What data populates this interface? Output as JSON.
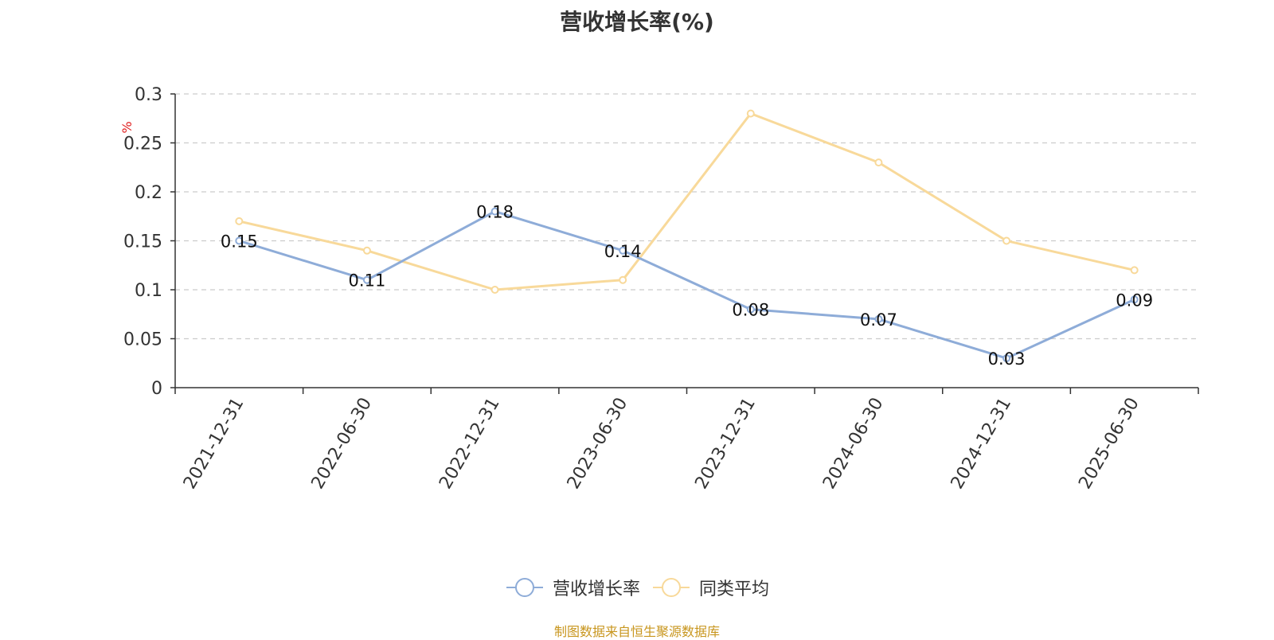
{
  "chart_data": {
    "type": "line",
    "title": "营收增长率(%)",
    "ylabel": "%",
    "xlabel": "",
    "categories": [
      "2021-12-31",
      "2022-06-30",
      "2022-12-31",
      "2023-06-30",
      "2023-12-31",
      "2024-06-30",
      "2024-12-31",
      "2025-06-30"
    ],
    "ylim": [
      0,
      0.3
    ],
    "yticks": [
      "0",
      "0.05",
      "0.1",
      "0.15",
      "0.2",
      "0.25",
      "0.3"
    ],
    "grid": true,
    "legend_position": "bottom-center",
    "series": [
      {
        "name": "营收增长率",
        "color": "#8eacd8",
        "values": [
          0.15,
          0.11,
          0.18,
          0.14,
          0.08,
          0.07,
          0.03,
          0.09
        ],
        "data_labels": [
          "0.15",
          "0.11",
          "0.18",
          "0.14",
          "0.08",
          "0.07",
          "0.03",
          "0.09"
        ]
      },
      {
        "name": "同类平均",
        "color": "#f8d99a",
        "values": [
          0.17,
          0.14,
          0.1,
          0.11,
          0.28,
          0.23,
          0.15,
          0.12
        ]
      }
    ]
  },
  "footer": {
    "source": "制图数据来自恒生聚源数据库"
  },
  "colors": {
    "axis": "#333333",
    "grid": "#cccccc",
    "ylabel": "#e02020",
    "source": "#c8961e"
  }
}
